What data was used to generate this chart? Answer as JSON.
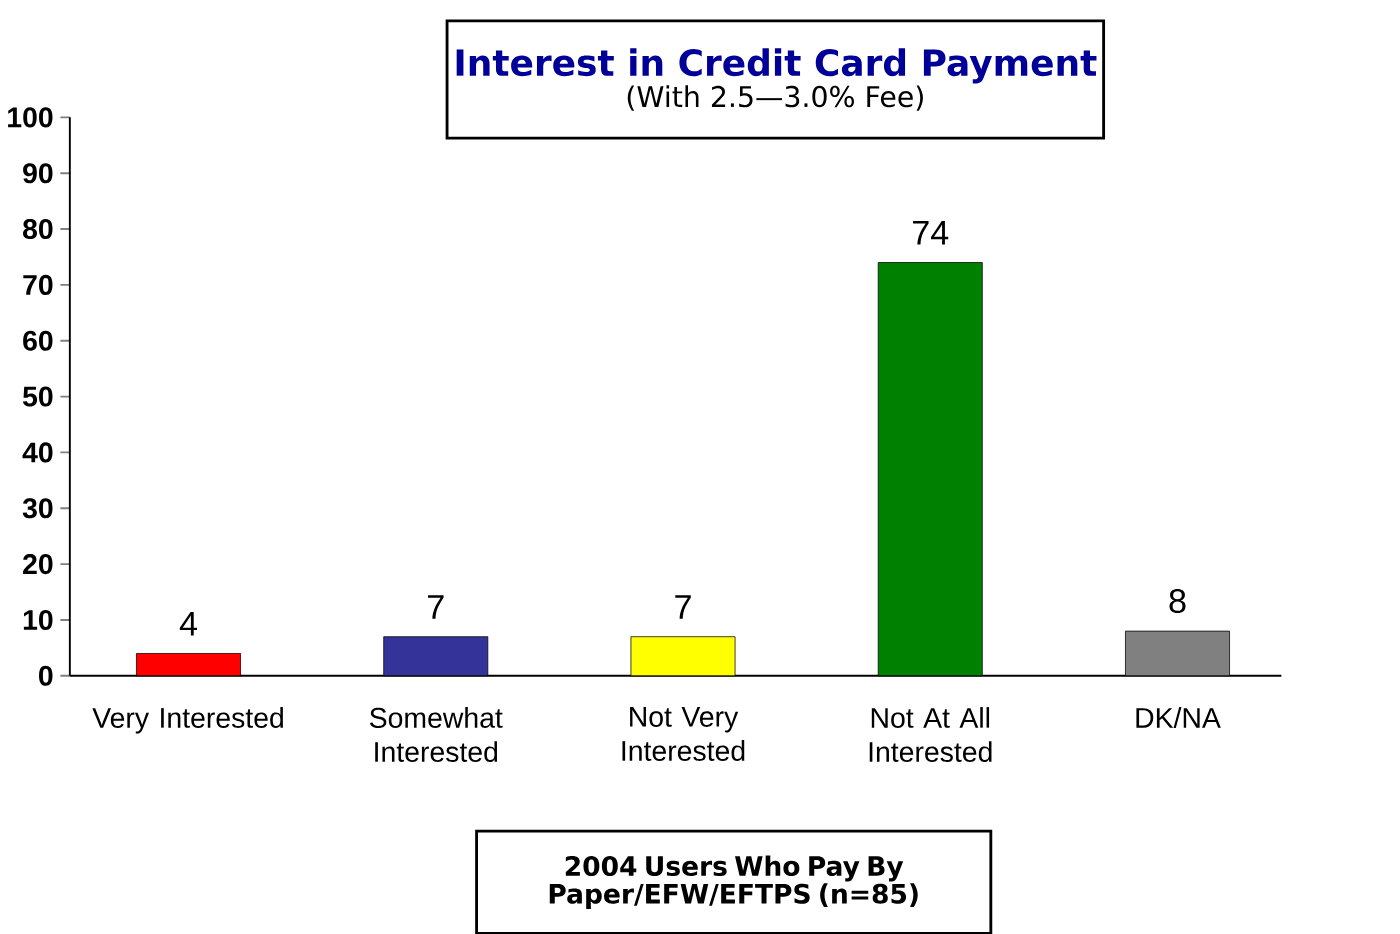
{
  "chart_data": {
    "type": "bar",
    "title": "Interest in Credit Card Payment",
    "subtitle": "(With 2.5—3.0% Fee)",
    "xlabel": "2004 Users Who Pay By Paper/EFW/EFTPS (n=85)",
    "categories": [
      "Very Interested",
      "Somewhat Interested",
      "Not Very Interested",
      "Not At All Interested",
      "DK/NA"
    ],
    "values": [
      4,
      7,
      7,
      74,
      8
    ],
    "colors": [
      "#ff0000",
      "#333399",
      "#ffff00",
      "#008000",
      "#808080"
    ],
    "ylim": [
      0,
      100
    ],
    "yticks": [
      0,
      10,
      20,
      30,
      40,
      50,
      60,
      70,
      80,
      90,
      100
    ],
    "data_labels": true
  }
}
